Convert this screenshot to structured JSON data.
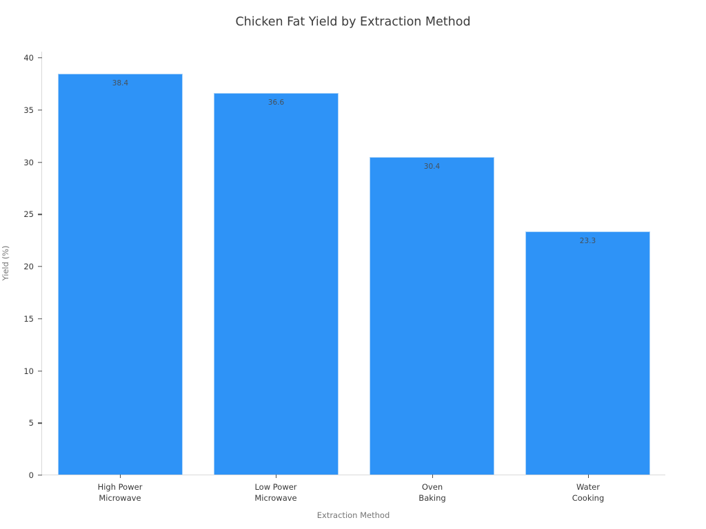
{
  "chart_data": {
    "type": "bar",
    "title": "Chicken Fat Yield by Extraction Method",
    "xlabel": "Extraction Method",
    "ylabel": "Yield (%)",
    "categories": [
      "High Power\nMicrowave",
      "Low Power\nMicrowave",
      "Oven\nBaking",
      "Water\nCooking"
    ],
    "values": [
      38.4,
      36.6,
      30.4,
      23.3
    ],
    "value_labels": [
      "38.4",
      "36.6",
      "30.4",
      "23.3"
    ],
    "ylim": [
      0,
      40
    ],
    "yticks": [
      0,
      5,
      10,
      15,
      20,
      25,
      30,
      35,
      40
    ],
    "grid": false,
    "legend": "none",
    "bar_color": "#2e93f7",
    "bar_edge_color": "#a9d2f8"
  }
}
